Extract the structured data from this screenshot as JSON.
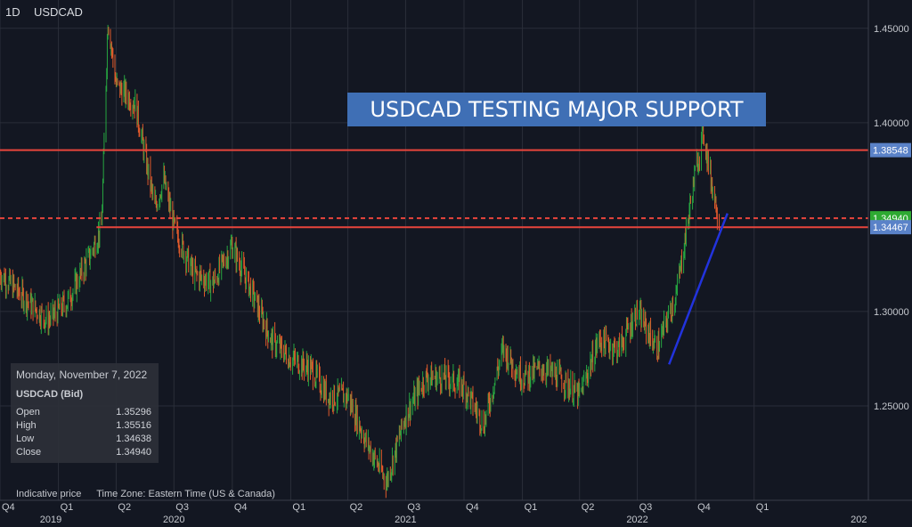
{
  "header": {
    "timeframe": "1D",
    "symbol": "USDCAD"
  },
  "annotation": {
    "title": "USDCAD TESTING MAJOR SUPPORT"
  },
  "info_panel": {
    "date": "Monday, November 7, 2022",
    "symbol": "USDCAD (Bid)",
    "rows": [
      {
        "label": "Open",
        "value": "1.35296"
      },
      {
        "label": "High",
        "value": "1.35516"
      },
      {
        "label": "Low",
        "value": "1.34638"
      },
      {
        "label": "Close",
        "value": "1.34940"
      }
    ]
  },
  "footer": {
    "indicative": "Indicative price",
    "timezone": "Time Zone: Eastern Time (US & Canada)"
  },
  "colors": {
    "background": "#131722",
    "up": "#26a641",
    "down": "#e05a2b",
    "level_line": "#e8453c",
    "trend_line": "#2233dd",
    "grid": "#2a2e39",
    "title_bg": "#3f6fb5"
  },
  "chart_data": {
    "type": "candlestick",
    "ylim": [
      1.2,
      1.465
    ],
    "y_ticks": [
      "1.45000",
      "1.40000",
      "1.30000",
      "1.25000"
    ],
    "y_tick_values": [
      1.45,
      1.4,
      1.3,
      1.25
    ],
    "x_tick_labels": [
      "Q4",
      "Q1",
      "Q2",
      "Q3",
      "Q4",
      "Q1",
      "Q2",
      "Q3",
      "Q4",
      "Q1",
      "Q2",
      "Q3",
      "Q4",
      "Q1"
    ],
    "x_tick_dates": [
      "2019-10-01",
      "2020-01-01",
      "2020-04-01",
      "2020-07-01",
      "2020-10-01",
      "2021-01-01",
      "2021-04-01",
      "2021-07-01",
      "2021-10-01",
      "2022-01-01",
      "2022-04-01",
      "2022-07-01",
      "2022-10-01",
      "2023-01-01"
    ],
    "year_labels": [
      "2019",
      "2020",
      "2021",
      "2022",
      "202"
    ],
    "year_dates": [
      "2019-12-20",
      "2020-07-01",
      "2021-07-01",
      "2022-07-01",
      "2023-06-15"
    ],
    "x_range": [
      "2019-10-01",
      "2023-06-30"
    ],
    "price_path": [
      [
        "2019-10-01",
        1.32
      ],
      [
        "2019-12-15",
        1.295
      ],
      [
        "2020-01-15",
        1.305
      ],
      [
        "2020-02-20",
        1.33
      ],
      [
        "2020-03-09",
        1.345
      ],
      [
        "2020-03-19",
        1.455
      ],
      [
        "2020-04-01",
        1.42
      ],
      [
        "2020-05-01",
        1.41
      ],
      [
        "2020-06-01",
        1.355
      ],
      [
        "2020-06-15",
        1.37
      ],
      [
        "2020-07-01",
        1.345
      ],
      [
        "2020-08-01",
        1.32
      ],
      [
        "2020-09-01",
        1.315
      ],
      [
        "2020-09-30",
        1.335
      ],
      [
        "2020-11-01",
        1.31
      ],
      [
        "2020-12-01",
        1.285
      ],
      [
        "2021-01-01",
        1.275
      ],
      [
        "2021-02-01",
        1.27
      ],
      [
        "2021-03-01",
        1.255
      ],
      [
        "2021-04-01",
        1.255
      ],
      [
        "2021-05-01",
        1.23
      ],
      [
        "2021-06-01",
        1.21
      ],
      [
        "2021-07-01",
        1.245
      ],
      [
        "2021-08-01",
        1.265
      ],
      [
        "2021-09-01",
        1.265
      ],
      [
        "2021-10-01",
        1.26
      ],
      [
        "2021-11-01",
        1.24
      ],
      [
        "2021-12-01",
        1.28
      ],
      [
        "2022-01-01",
        1.265
      ],
      [
        "2022-02-01",
        1.27
      ],
      [
        "2022-03-01",
        1.265
      ],
      [
        "2022-04-01",
        1.255
      ],
      [
        "2022-05-01",
        1.285
      ],
      [
        "2022-06-01",
        1.28
      ],
      [
        "2022-07-01",
        1.3
      ],
      [
        "2022-08-01",
        1.28
      ],
      [
        "2022-09-01",
        1.31
      ],
      [
        "2022-10-01",
        1.375
      ],
      [
        "2022-10-13",
        1.395
      ],
      [
        "2022-10-25",
        1.37
      ],
      [
        "2022-11-07",
        1.349
      ]
    ],
    "horizontal_levels": [
      {
        "label": "1.38548",
        "value": 1.38548,
        "style": "solid",
        "start": "2019-10-01"
      },
      {
        "label": "1.34467",
        "value": 1.34467,
        "style": "solid",
        "start": "2020-03-01"
      },
      {
        "label": "1.34940",
        "value": 1.3494,
        "style": "dashed",
        "start": "2019-10-01"
      }
    ],
    "trendline": {
      "start": [
        "2022-08-20",
        1.272
      ],
      "end": [
        "2022-11-20",
        1.352
      ]
    },
    "last_price": "1.34940"
  }
}
